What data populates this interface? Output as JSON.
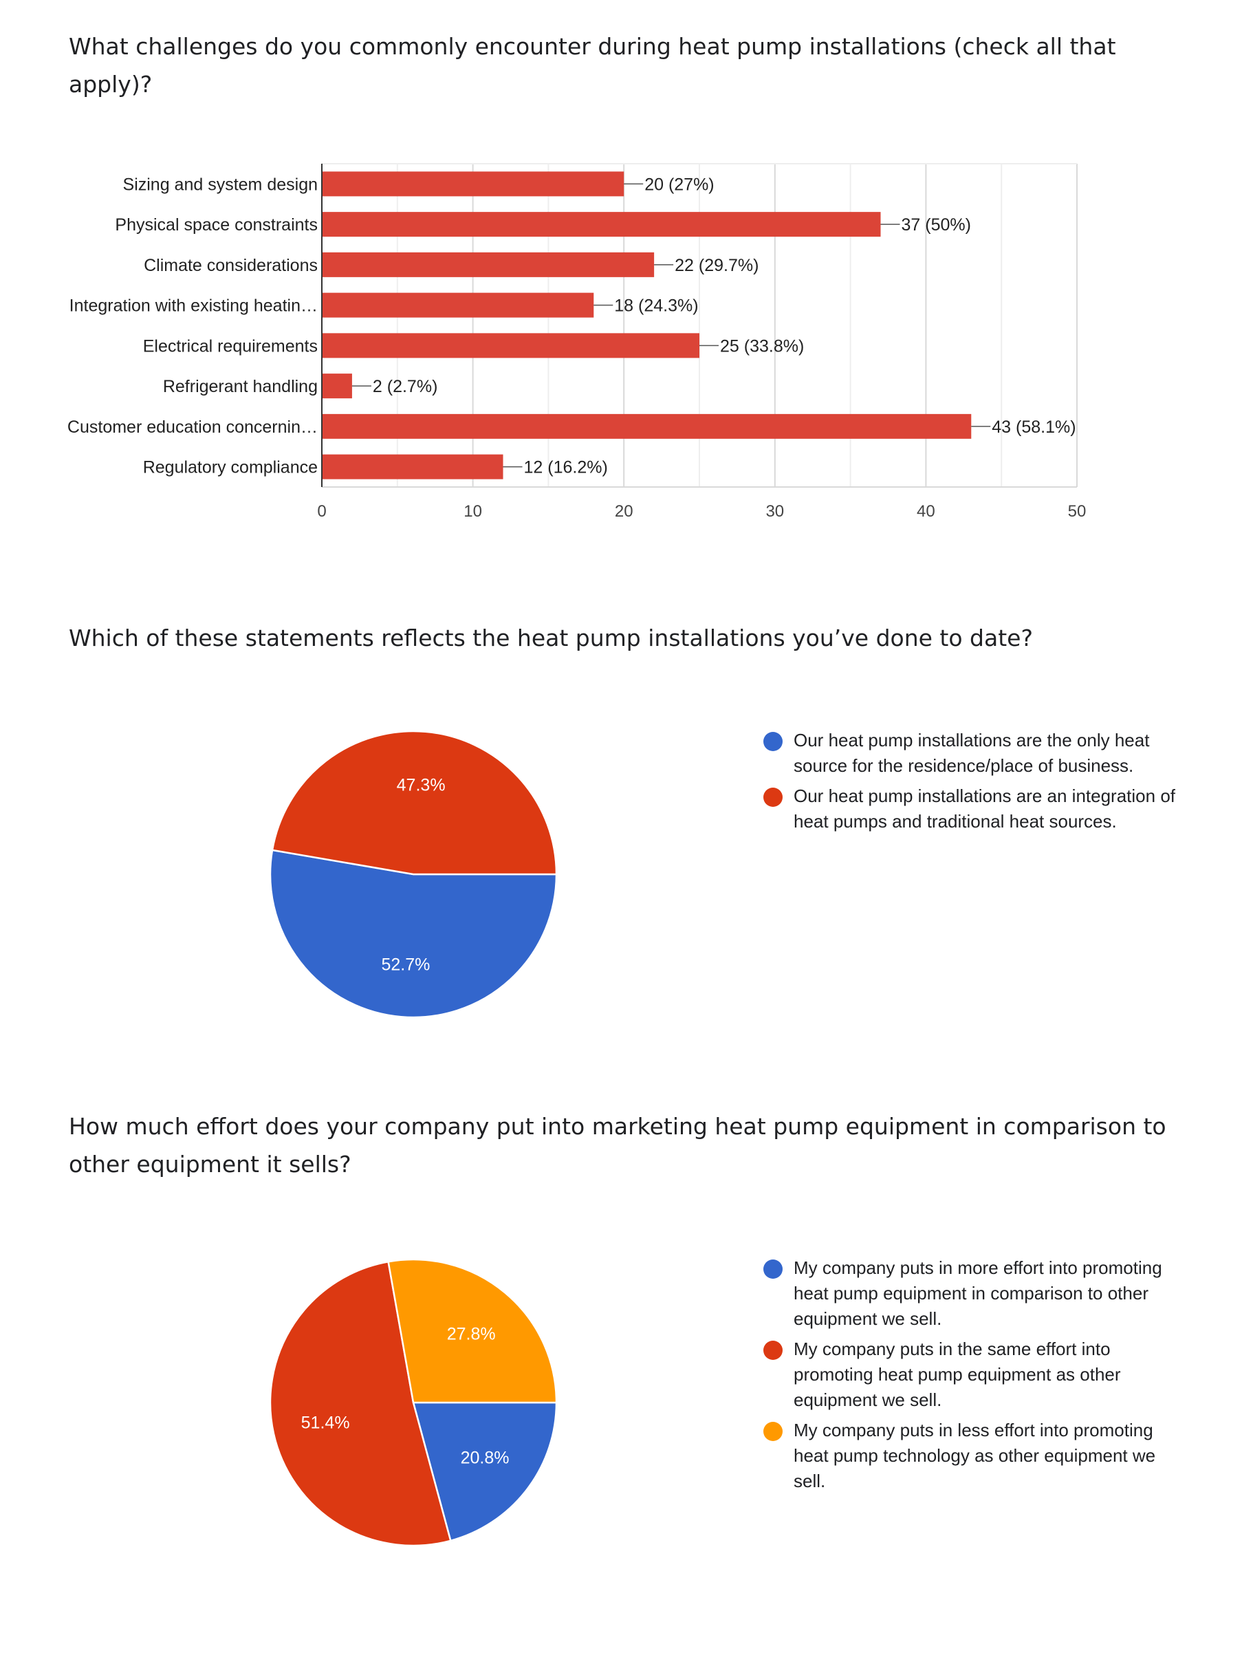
{
  "questions": {
    "q1": "What challenges do you commonly encounter during heat pump installations (check all that apply)?",
    "q2": "Which of these statements reflects the heat pump installations you’ve done to date?",
    "q3": "How much effort does your company put into marketing heat pump equipment in comparison to other equipment it sells?"
  },
  "colors": {
    "bar": "#db4437",
    "blue": "#3366cc",
    "red": "#dc3912",
    "orange": "#ff9900",
    "grid": "#e0e0e0",
    "axis": "#333333"
  },
  "chart_data": [
    {
      "type": "bar",
      "orientation": "horizontal",
      "title": "What challenges do you commonly encounter during heat pump installations (check all that apply)?",
      "categories": [
        "Sizing and system design",
        "Physical space constraints",
        "Climate considerations",
        "Integration with existing heatin…",
        "Electrical requirements",
        "Refrigerant handling",
        "Customer education concernin…",
        "Regulatory compliance"
      ],
      "values": [
        20,
        37,
        22,
        18,
        25,
        2,
        43,
        12
      ],
      "data_labels": [
        "20 (27%)",
        "37 (50%)",
        "22 (29.7%)",
        "18 (24.3%)",
        "25 (33.8%)",
        "2 (2.7%)",
        "43 (58.1%)",
        "12 (16.2%)"
      ],
      "xlim": [
        0,
        50
      ],
      "xticks": [
        0,
        10,
        20,
        30,
        40,
        50
      ],
      "grid": true
    },
    {
      "type": "pie",
      "title": "Which of these statements reflects the heat pump installations you’ve done to date?",
      "slices": [
        {
          "label": "Our heat pump installations are the only heat source for the residence/place of business.",
          "value": 52.7,
          "display": "52.7%",
          "color": "#3366cc"
        },
        {
          "label": "Our heat pump installations are an integration of heat pumps and traditional heat sources.",
          "value": 47.3,
          "display": "47.3%",
          "color": "#dc3912"
        }
      ],
      "legend_position": "right"
    },
    {
      "type": "pie",
      "title": "How much effort does your company put into marketing heat pump equipment in comparison to other equipment it sells?",
      "slices": [
        {
          "label": "My company puts in more effort into promoting heat pump equipment in comparison to other equipment we sell.",
          "value": 20.8,
          "display": "20.8%",
          "color": "#3366cc"
        },
        {
          "label": "My company puts in the same effort into promoting heat pump equipment as other equipment we sell.",
          "value": 51.4,
          "display": "51.4%",
          "color": "#dc3912"
        },
        {
          "label": "My company puts in less effort into promoting heat pump technology as other equipment we sell.",
          "value": 27.8,
          "display": "27.8%",
          "color": "#ff9900"
        }
      ],
      "legend_position": "right"
    }
  ]
}
